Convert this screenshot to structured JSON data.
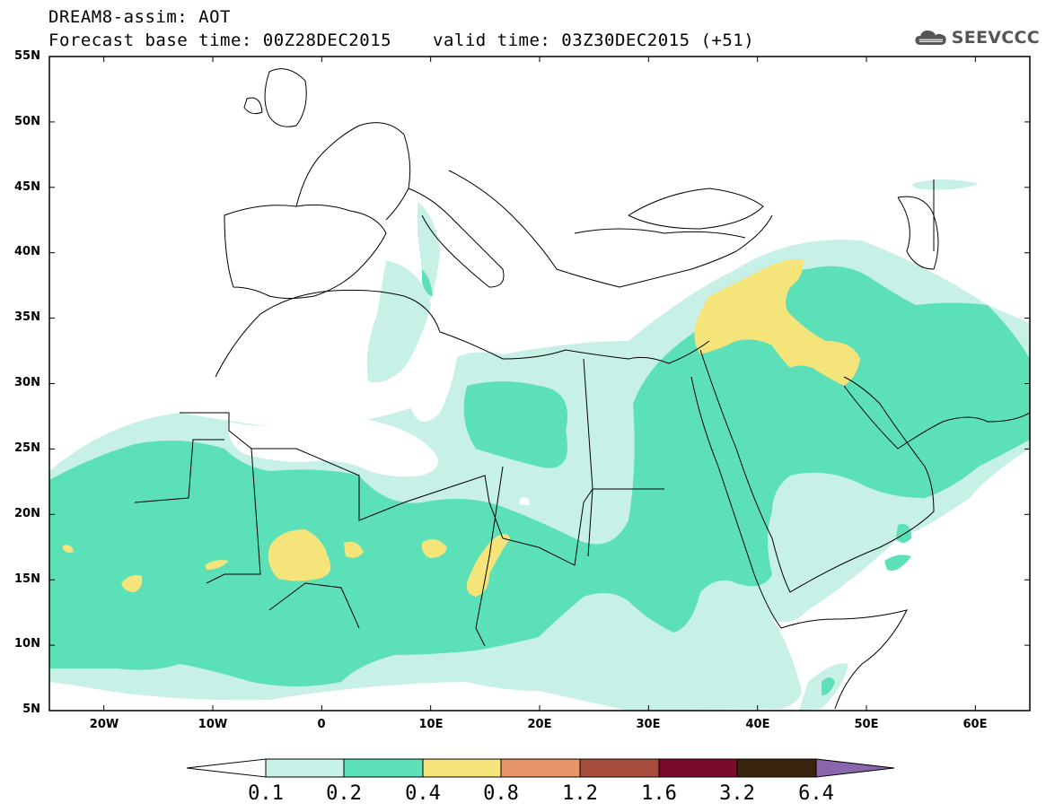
{
  "header": {
    "line1": "DREAM8-assim: AOT",
    "base_time": "Forecast base time: 00Z28DEC2015",
    "valid_time": "valid time: 03Z30DEC2015 (+51)"
  },
  "logo": {
    "text": "SEEVCCC",
    "icon": "cloud-icon"
  },
  "axes": {
    "lat_labels": [
      "55N",
      "50N",
      "45N",
      "40N",
      "35N",
      "30N",
      "25N",
      "20N",
      "15N",
      "10N",
      "5N"
    ],
    "lon_labels": [
      "20W",
      "10W",
      "0",
      "10E",
      "20E",
      "30E",
      "40E",
      "50E",
      "60E"
    ]
  },
  "colorbar": {
    "levels": [
      "0.1",
      "0.2",
      "0.4",
      "0.8",
      "1.2",
      "1.6",
      "3.2",
      "6.4"
    ],
    "colors": [
      "#ffffff",
      "#c7f0e6",
      "#5ce0b8",
      "#f5e47a",
      "#e8956a",
      "#a84c3c",
      "#7a0a2a",
      "#3a2410",
      "#8a66aa"
    ]
  },
  "map": {
    "variable": "AOT",
    "fill_colors": {
      "0.1-0.2": "#c7f0e6",
      "0.2-0.4": "#5ce0b8",
      "0.4-0.8": "#f5e47a"
    },
    "frame_color": "#000000",
    "border_color": "#000000"
  }
}
